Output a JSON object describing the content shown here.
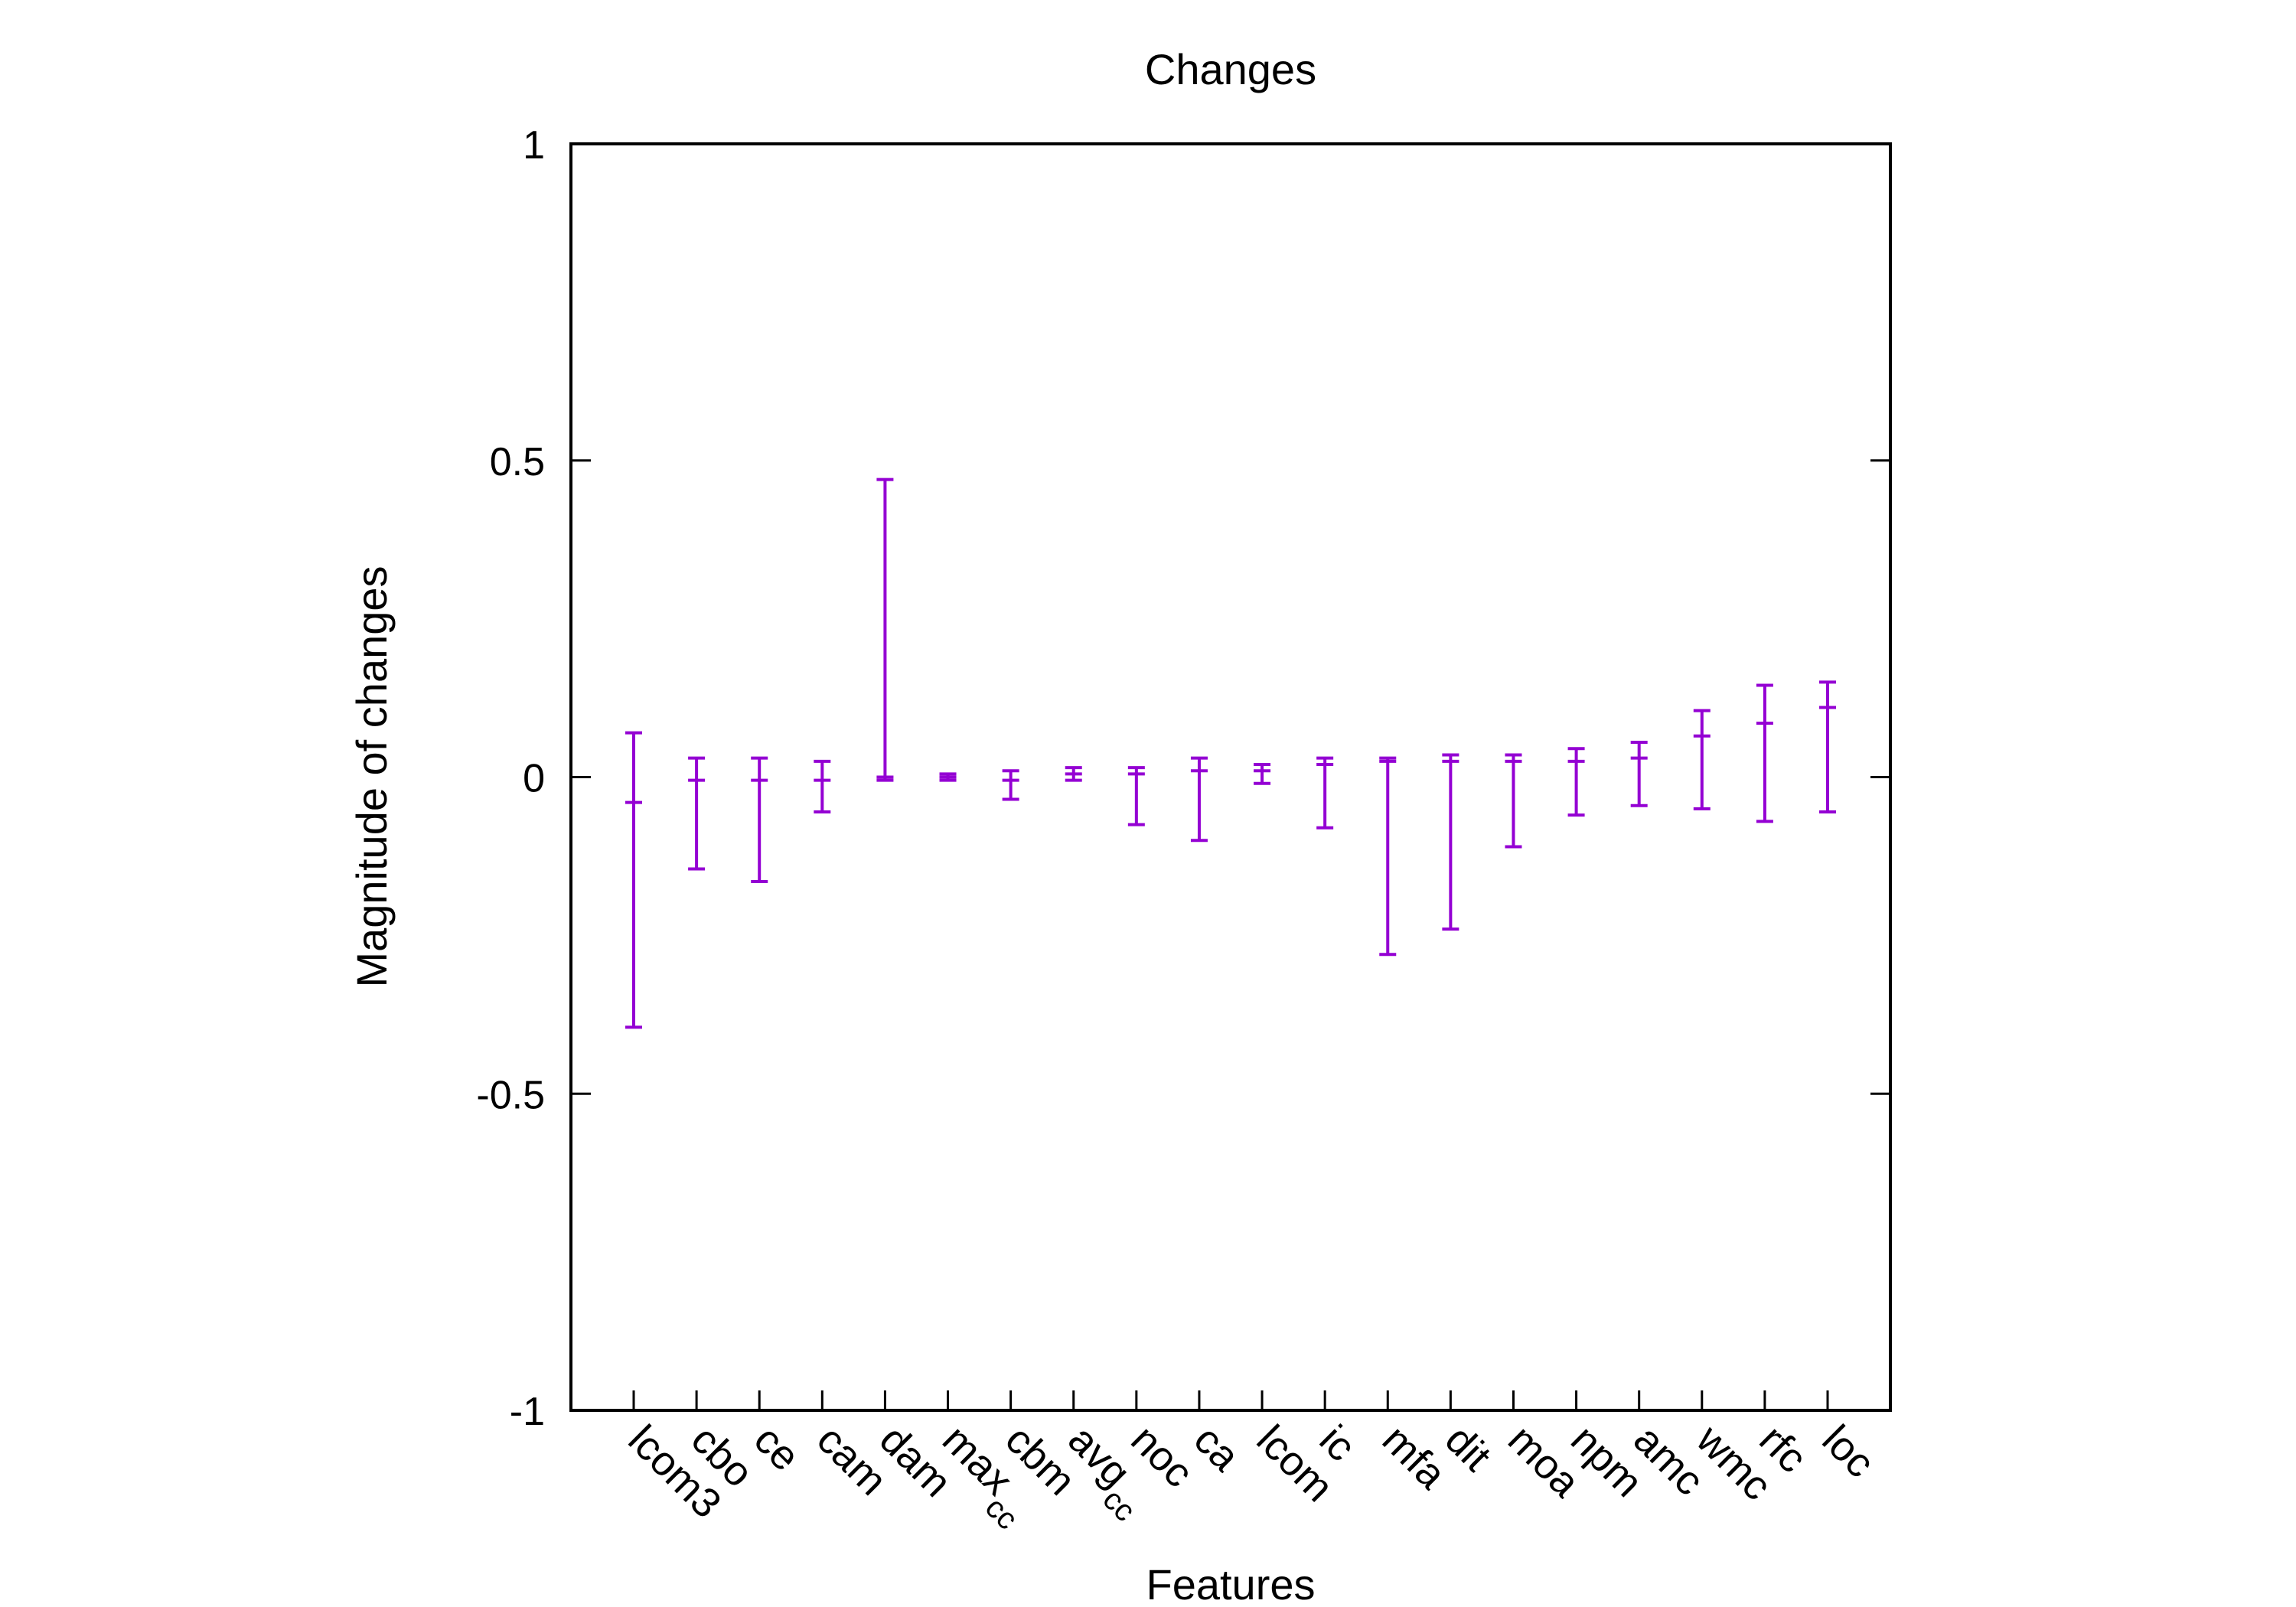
{
  "chart_data": {
    "type": "errorbar",
    "title": "Changes",
    "xlabel": "Features",
    "ylabel": "Magnitude of changes",
    "ylim": [
      -1,
      1
    ],
    "yticks": [
      {
        "value": 1,
        "label": "1"
      },
      {
        "value": 0.5,
        "label": "0.5"
      },
      {
        "value": 0,
        "label": "0"
      },
      {
        "value": -0.5,
        "label": "-0.5"
      },
      {
        "value": -1,
        "label": "-1"
      }
    ],
    "grid": false,
    "series_color": "#9400d3",
    "categories": [
      {
        "label": "lcom3",
        "sub": ""
      },
      {
        "label": "cbo",
        "sub": ""
      },
      {
        "label": "ce",
        "sub": ""
      },
      {
        "label": "cam",
        "sub": ""
      },
      {
        "label": "dam",
        "sub": ""
      },
      {
        "label": "max",
        "sub": "cc"
      },
      {
        "label": "cbm",
        "sub": ""
      },
      {
        "label": "avg",
        "sub": "cc"
      },
      {
        "label": "noc",
        "sub": ""
      },
      {
        "label": "ca",
        "sub": ""
      },
      {
        "label": "lcom",
        "sub": ""
      },
      {
        "label": "ic",
        "sub": ""
      },
      {
        "label": "mfa",
        "sub": ""
      },
      {
        "label": "dit",
        "sub": ""
      },
      {
        "label": "moa",
        "sub": ""
      },
      {
        "label": "npm",
        "sub": ""
      },
      {
        "label": "amc",
        "sub": ""
      },
      {
        "label": "wmc",
        "sub": ""
      },
      {
        "label": "rfc",
        "sub": ""
      },
      {
        "label": "loc",
        "sub": ""
      }
    ],
    "values": [
      {
        "low": -0.395,
        "mid": -0.04,
        "high": 0.07
      },
      {
        "low": -0.145,
        "mid": -0.005,
        "high": 0.03
      },
      {
        "low": -0.165,
        "mid": -0.005,
        "high": 0.03
      },
      {
        "low": -0.055,
        "mid": -0.005,
        "high": 0.025
      },
      {
        "low": -0.005,
        "mid": 0.0,
        "high": 0.47
      },
      {
        "low": -0.005,
        "mid": 0.0,
        "high": 0.005
      },
      {
        "low": -0.035,
        "mid": -0.005,
        "high": 0.01
      },
      {
        "low": -0.005,
        "mid": 0.005,
        "high": 0.015
      },
      {
        "low": -0.075,
        "mid": 0.005,
        "high": 0.015
      },
      {
        "low": -0.1,
        "mid": 0.01,
        "high": 0.03
      },
      {
        "low": -0.01,
        "mid": 0.01,
        "high": 0.02
      },
      {
        "low": -0.08,
        "mid": 0.02,
        "high": 0.03
      },
      {
        "low": -0.28,
        "mid": 0.025,
        "high": 0.03
      },
      {
        "low": -0.24,
        "mid": 0.025,
        "high": 0.035
      },
      {
        "low": -0.11,
        "mid": 0.025,
        "high": 0.035
      },
      {
        "low": -0.06,
        "mid": 0.025,
        "high": 0.045
      },
      {
        "low": -0.045,
        "mid": 0.03,
        "high": 0.055
      },
      {
        "low": -0.05,
        "mid": 0.065,
        "high": 0.105
      },
      {
        "low": -0.07,
        "mid": 0.085,
        "high": 0.145
      },
      {
        "low": -0.055,
        "mid": 0.11,
        "high": 0.15
      }
    ]
  }
}
